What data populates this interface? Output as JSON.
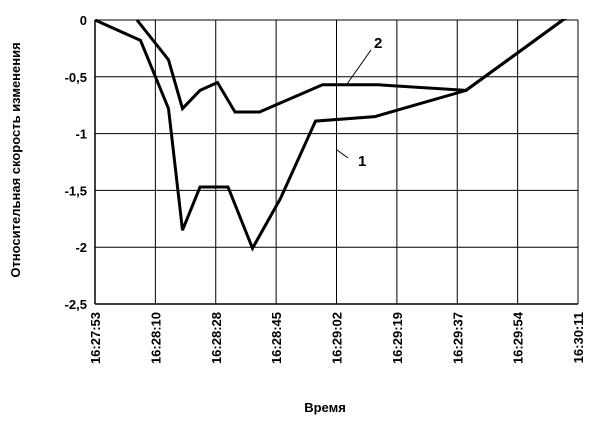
{
  "chart_data": {
    "type": "line",
    "title": "",
    "xlabel": "Время",
    "ylabel": "Относительная скорость изменения",
    "ylim": [
      -2.5,
      0
    ],
    "yticks": [
      0,
      -0.5,
      -1,
      -1.5,
      -2,
      -2.5
    ],
    "ytick_labels": [
      "0",
      "-0,5",
      "-1",
      "-1,5",
      "-2",
      "-2,5"
    ],
    "xlim_seconds_from_start": [
      0,
      138
    ],
    "xtick_labels": [
      "16:27:53",
      "16:28:10",
      "16:28:28",
      "16:28:45",
      "16:29:02",
      "16:29:19",
      "16:29:37",
      "16:29:54",
      "16:30:11"
    ],
    "grid": true,
    "colors": {
      "line": "#000000",
      "grid": "#000000",
      "background": "#ffffff"
    },
    "series": [
      {
        "name": "1",
        "x": [
          "16:27:53",
          "16:28:06",
          "16:28:14",
          "16:28:18",
          "16:28:23",
          "16:28:31",
          "16:28:38",
          "16:28:46",
          "16:28:56",
          "16:29:13",
          "16:29:39",
          "16:30:08"
        ],
        "y": [
          0.0,
          -0.18,
          -0.78,
          -1.85,
          -1.47,
          -1.47,
          -2.01,
          -1.57,
          -0.89,
          -0.85,
          -0.62,
          0.03
        ]
      },
      {
        "name": "2",
        "x": [
          "16:28:05",
          "16:28:14",
          "16:28:18",
          "16:28:23",
          "16:28:28",
          "16:28:33",
          "16:28:40",
          "16:28:58",
          "16:29:14",
          "16:29:39",
          "16:30:08"
        ],
        "y": [
          0.0,
          -0.35,
          -0.78,
          -0.62,
          -0.55,
          -0.81,
          -0.81,
          -0.57,
          -0.57,
          -0.62,
          0.03
        ]
      }
    ],
    "annotations": [
      {
        "text": "1",
        "series": "1"
      },
      {
        "text": "2",
        "series": "2"
      }
    ]
  }
}
